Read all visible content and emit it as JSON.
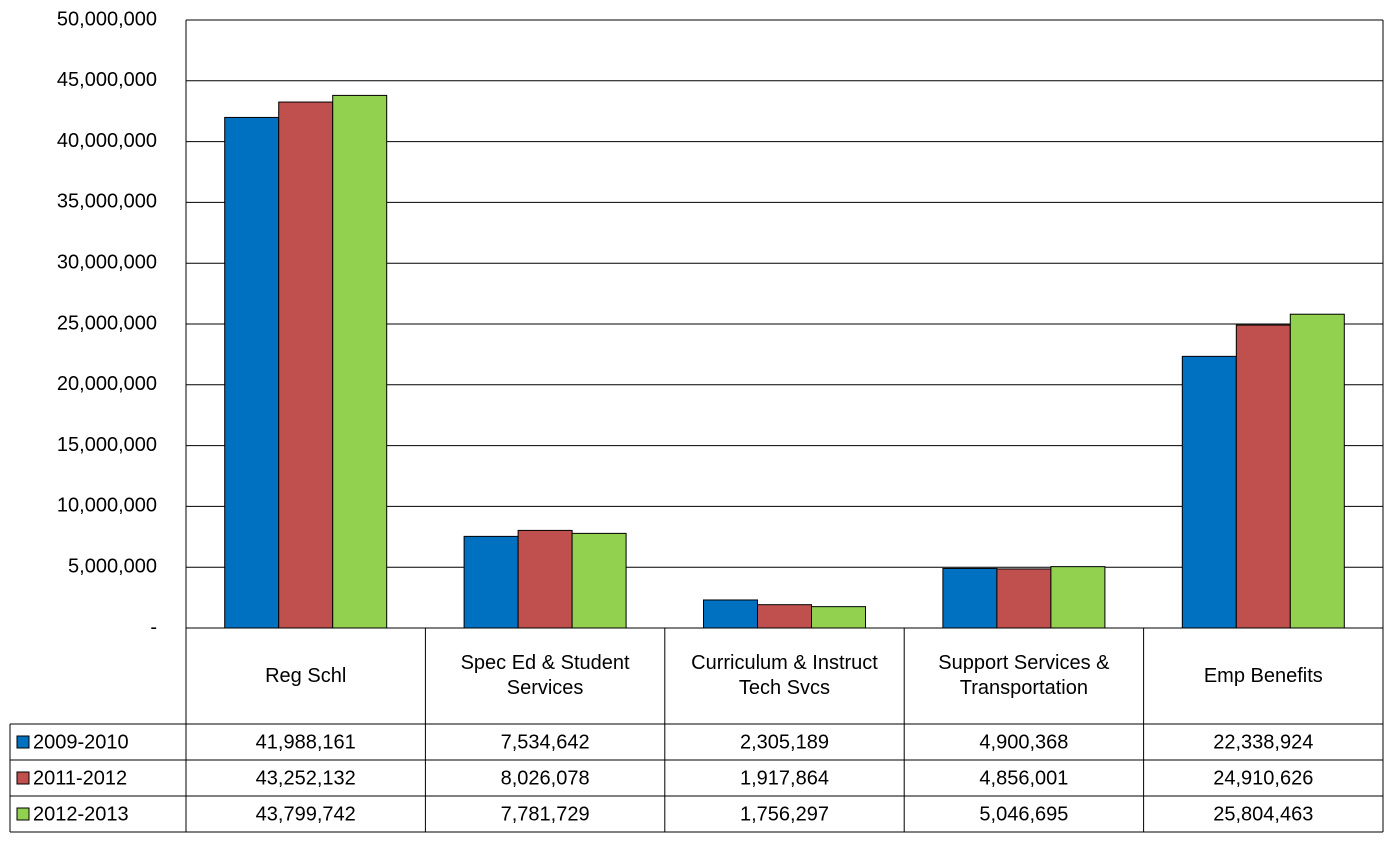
{
  "chart_data": {
    "type": "bar",
    "categories": [
      "Reg Schl",
      "Spec Ed & Student Services",
      "Curriculum & Instruct Tech Svcs",
      "Support Services & Transportation",
      "Emp Benefits"
    ],
    "series": [
      {
        "name": "2009-2010",
        "color": "#0070C0",
        "values": [
          41988161,
          7534642,
          2305189,
          4900368,
          22338924
        ],
        "value_labels": [
          "41,988,161",
          "7,534,642",
          "2,305,189",
          "4,900,368",
          "22,338,924"
        ]
      },
      {
        "name": "2011-2012",
        "color": "#C0504D",
        "values": [
          43252132,
          8026078,
          1917864,
          4856001,
          24910626
        ],
        "value_labels": [
          "43,252,132",
          "8,026,078",
          "1,917,864",
          "4,856,001",
          "24,910,626"
        ]
      },
      {
        "name": "2012-2013",
        "color": "#92D050",
        "values": [
          43799742,
          7781729,
          1756297,
          5046695,
          25804463
        ],
        "value_labels": [
          "43,799,742",
          "7,781,729",
          "1,756,297",
          "5,046,695",
          "25,804,463"
        ]
      }
    ],
    "ylim": [
      0,
      50000000
    ],
    "yticks": [
      {
        "value": 0,
        "label": "-"
      },
      {
        "value": 5000000,
        "label": "5,000,000"
      },
      {
        "value": 10000000,
        "label": "10,000,000"
      },
      {
        "value": 15000000,
        "label": "15,000,000"
      },
      {
        "value": 20000000,
        "label": "20,000,000"
      },
      {
        "value": 25000000,
        "label": "25,000,000"
      },
      {
        "value": 30000000,
        "label": "30,000,000"
      },
      {
        "value": 35000000,
        "label": "35,000,000"
      },
      {
        "value": 40000000,
        "label": "40,000,000"
      },
      {
        "value": 45000000,
        "label": "45,000,000"
      },
      {
        "value": 50000000,
        "label": "50,000,000"
      }
    ],
    "grid": true
  }
}
